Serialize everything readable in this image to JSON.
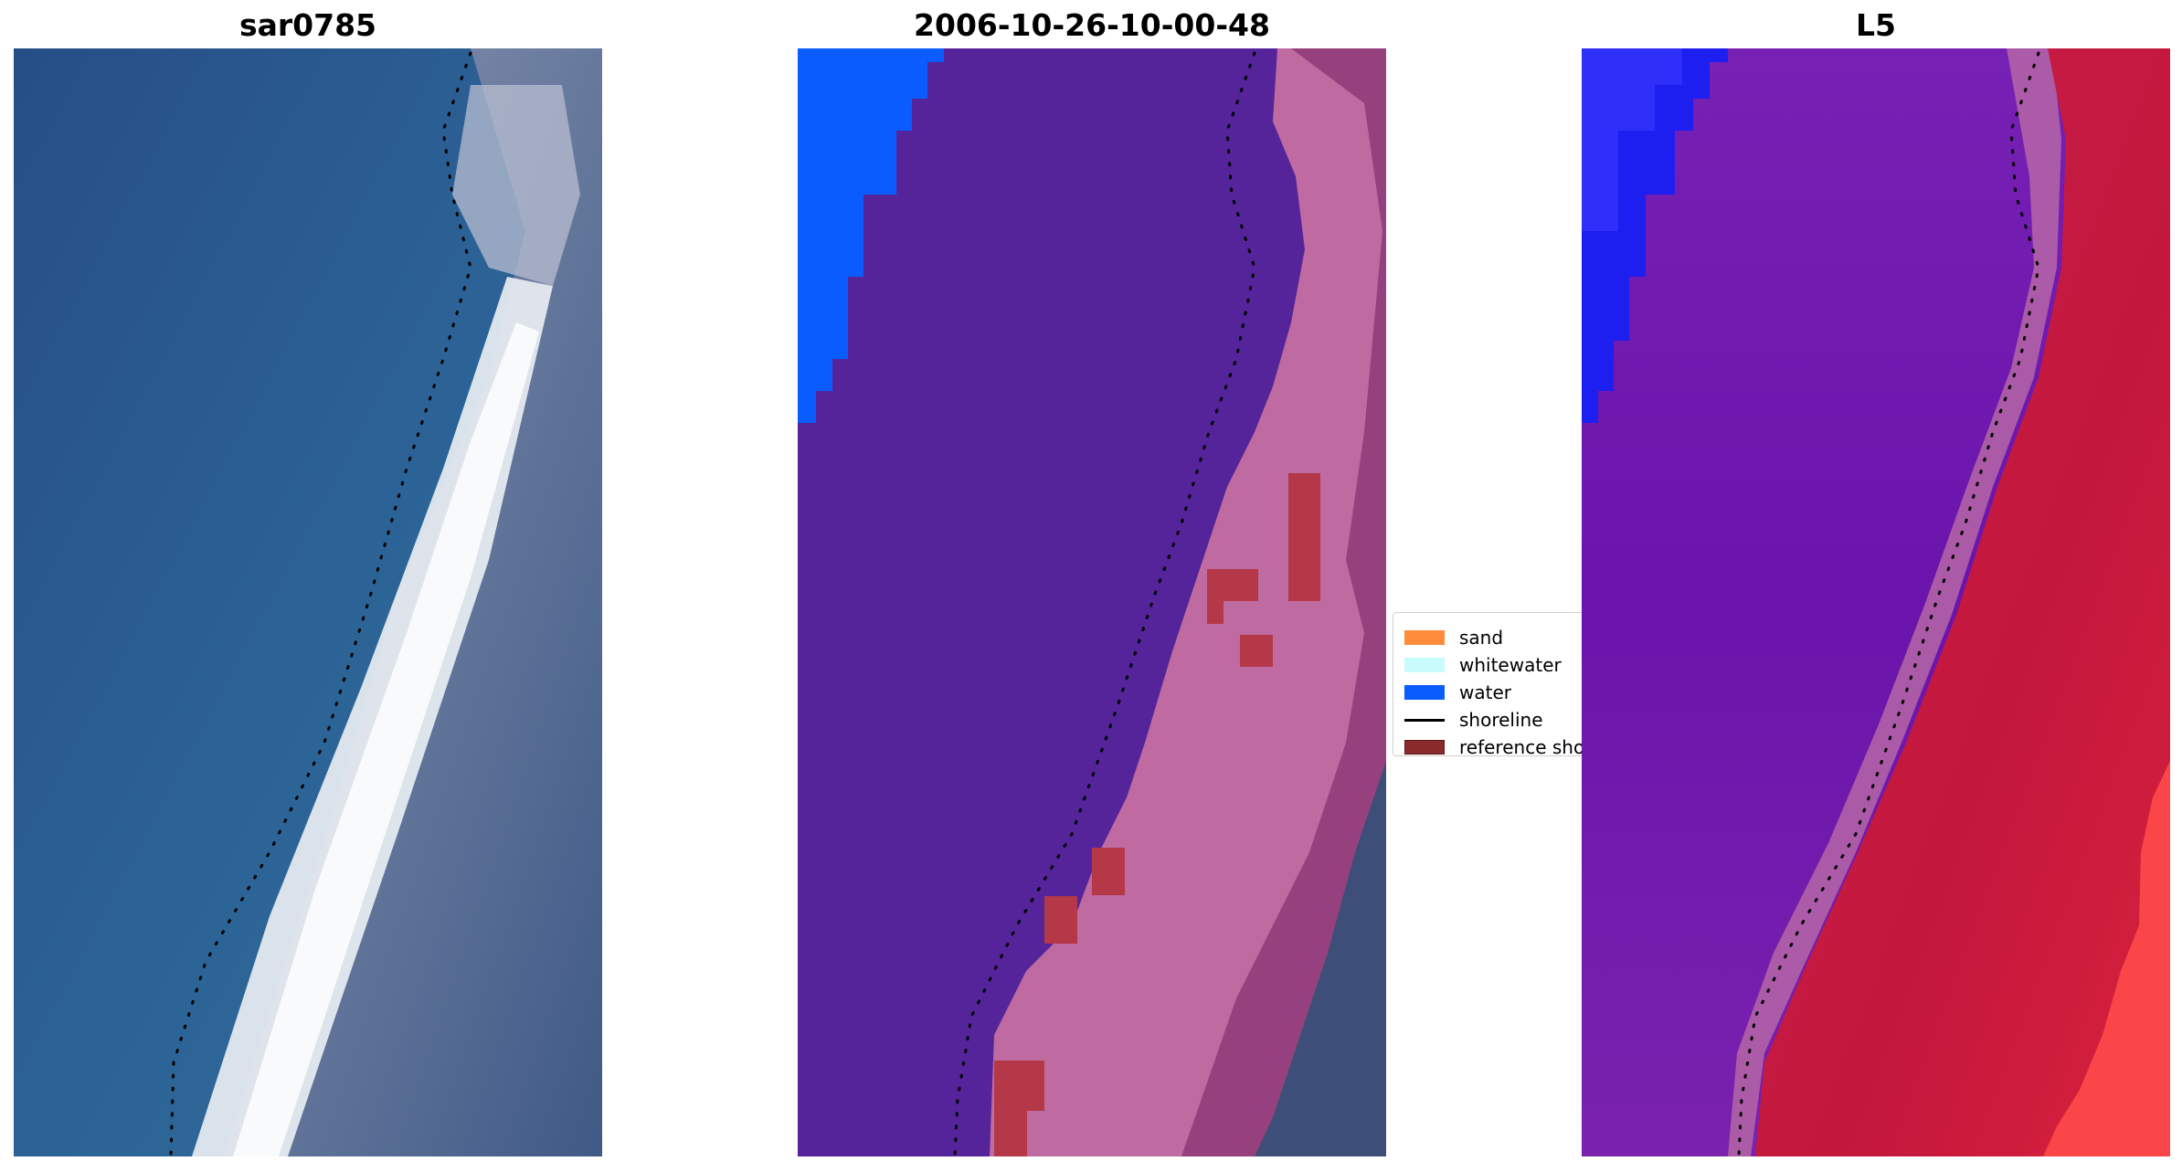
{
  "panels": [
    {
      "title": "sar0785"
    },
    {
      "title": "2006-10-26-10-00-48"
    },
    {
      "title": "L5"
    }
  ],
  "legend": {
    "items": [
      {
        "label": "sand",
        "color": "#ff8c3a",
        "kind": "patch"
      },
      {
        "label": "whitewater",
        "color": "#c8fbfb",
        "kind": "patch"
      },
      {
        "label": "water",
        "color": "#0a5cff",
        "kind": "patch"
      },
      {
        "label": "shoreline",
        "color": "#000000",
        "kind": "line"
      },
      {
        "label": "reference shoreline",
        "color": "#8b2a2a",
        "kind": "patch"
      }
    ]
  },
  "colors": {
    "deep_water": "#2e5a8c",
    "sea_water": "#2f6f9a",
    "breaker_white": "#f2f5f6",
    "sand_gray": "#6f7f9e",
    "classified_water": "#5a2fa0",
    "classified_sand": "#c06aa0",
    "classified_landward": "#8a3f78",
    "classified_ocean_blue": "#0a5cff",
    "index_purple": "#6a1fb0",
    "index_red": "#c4193f",
    "index_blue": "#1a24f0"
  }
}
